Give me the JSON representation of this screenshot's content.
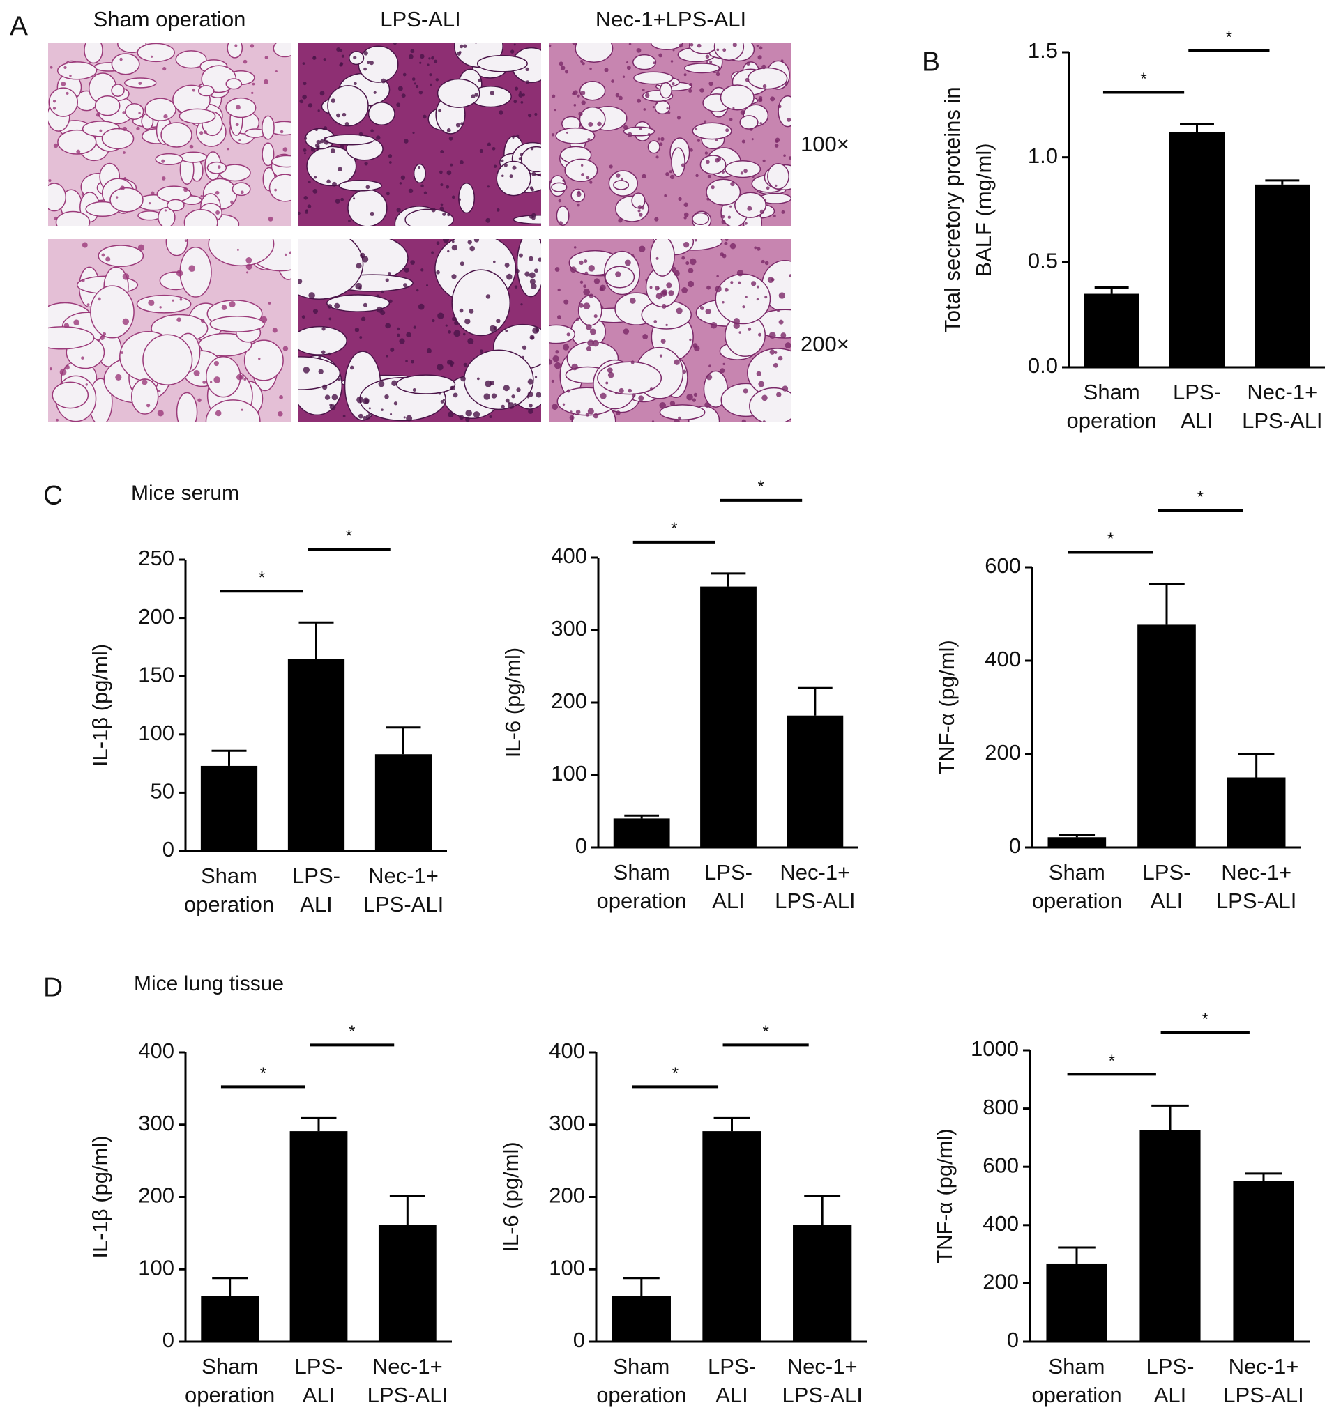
{
  "figure": {
    "panel_a": {
      "label": "A",
      "columns": [
        "Sham operation",
        "LPS-ALI",
        "Nec-1+LPS-ALI"
      ],
      "magnifications": [
        "100×",
        "200×"
      ]
    },
    "panel_c": {
      "label": "C",
      "title": "Mice serum"
    },
    "panel_d": {
      "label": "D",
      "title": "Mice lung tissue"
    }
  },
  "chart_data": [
    {
      "type": "bar",
      "panel_label": "B",
      "ylabel": [
        "Total secretory proteins in",
        "BALF (mg/ml)"
      ],
      "categories": [
        [
          "Sham",
          "operation"
        ],
        [
          "LPS-",
          "ALI"
        ],
        [
          "Nec-1+",
          "LPS-ALI"
        ]
      ],
      "values": [
        0.35,
        1.12,
        0.87
      ],
      "errors": [
        0.03,
        0.04,
        0.02
      ],
      "color": "#000000",
      "ylim": [
        0,
        1.5
      ],
      "yticks": [
        {
          "value": 0,
          "label": "0.0"
        },
        0.5,
        {
          "value": 1,
          "label": "1.0"
        },
        1.5
      ],
      "annotations": [
        "*",
        "*"
      ]
    },
    {
      "type": "bar",
      "ylabel": [
        "IL-1β (pg/ml)"
      ],
      "categories": [
        [
          "Sham",
          "operation"
        ],
        [
          "LPS-",
          "ALI"
        ],
        [
          "Nec-1+",
          "LPS-ALI"
        ]
      ],
      "values": [
        73,
        165,
        83
      ],
      "errors": [
        13,
        31,
        23
      ],
      "color": "#000000",
      "ylim": [
        0,
        250
      ],
      "yticks": [
        0,
        50,
        100,
        150,
        200,
        250
      ],
      "annotations": [
        "*",
        "*"
      ]
    },
    {
      "type": "bar",
      "ylabel": [
        "IL-6 (pg/ml)"
      ],
      "categories": [
        [
          "Sham",
          "operation"
        ],
        [
          "LPS-",
          "ALI"
        ],
        [
          "Nec-1+",
          "LPS-ALI"
        ]
      ],
      "values": [
        40,
        360,
        182
      ],
      "errors": [
        4,
        18,
        38
      ],
      "color": "#000000",
      "ylim": [
        0,
        400
      ],
      "yticks": [
        0,
        100,
        200,
        300,
        400
      ],
      "annotations": [
        "*",
        "*"
      ]
    },
    {
      "type": "bar",
      "ylabel": [
        "TNF-α (pg/ml)"
      ],
      "categories": [
        [
          "Sham",
          "operation"
        ],
        [
          "LPS-",
          "ALI"
        ],
        [
          "Nec-1+",
          "LPS-ALI"
        ]
      ],
      "values": [
        22,
        477,
        150
      ],
      "errors": [
        5,
        88,
        50
      ],
      "color": "#000000",
      "ylim": [
        0,
        600
      ],
      "yticks": [
        0,
        200,
        400,
        600
      ],
      "annotations": [
        "*",
        "*"
      ]
    },
    {
      "type": "bar",
      "ylabel": [
        "IL-1β (pg/ml)"
      ],
      "categories": [
        [
          "Sham",
          "operation"
        ],
        [
          "LPS-",
          "ALI"
        ],
        [
          "Nec-1+",
          "LPS-ALI"
        ]
      ],
      "values": [
        63,
        291,
        161
      ],
      "errors": [
        25,
        18,
        40
      ],
      "color": "#000000",
      "ylim": [
        0,
        400
      ],
      "yticks": [
        0,
        100,
        200,
        300,
        400
      ],
      "annotations": [
        "*",
        "*"
      ]
    },
    {
      "type": "bar",
      "ylabel": [
        "IL-6 (pg/ml)"
      ],
      "categories": [
        [
          "Sham",
          "operation"
        ],
        [
          "LPS-",
          "ALI"
        ],
        [
          "Nec-1+",
          "LPS-ALI"
        ]
      ],
      "values": [
        63,
        291,
        161
      ],
      "errors": [
        25,
        18,
        40
      ],
      "color": "#000000",
      "ylim": [
        0,
        400
      ],
      "yticks": [
        0,
        100,
        200,
        300,
        400
      ],
      "annotations": [
        "*",
        "*"
      ]
    },
    {
      "type": "bar",
      "ylabel": [
        "TNF-α (pg/ml)"
      ],
      "categories": [
        [
          "Sham",
          "operation"
        ],
        [
          "LPS-",
          "ALI"
        ],
        [
          "Nec-1+",
          "LPS-ALI"
        ]
      ],
      "values": [
        268,
        725,
        552
      ],
      "errors": [
        55,
        85,
        25
      ],
      "color": "#000000",
      "ylim": [
        0,
        1000
      ],
      "yticks": [
        0,
        200,
        400,
        600,
        800,
        1000
      ],
      "annotations": [
        "*",
        "*"
      ]
    }
  ]
}
